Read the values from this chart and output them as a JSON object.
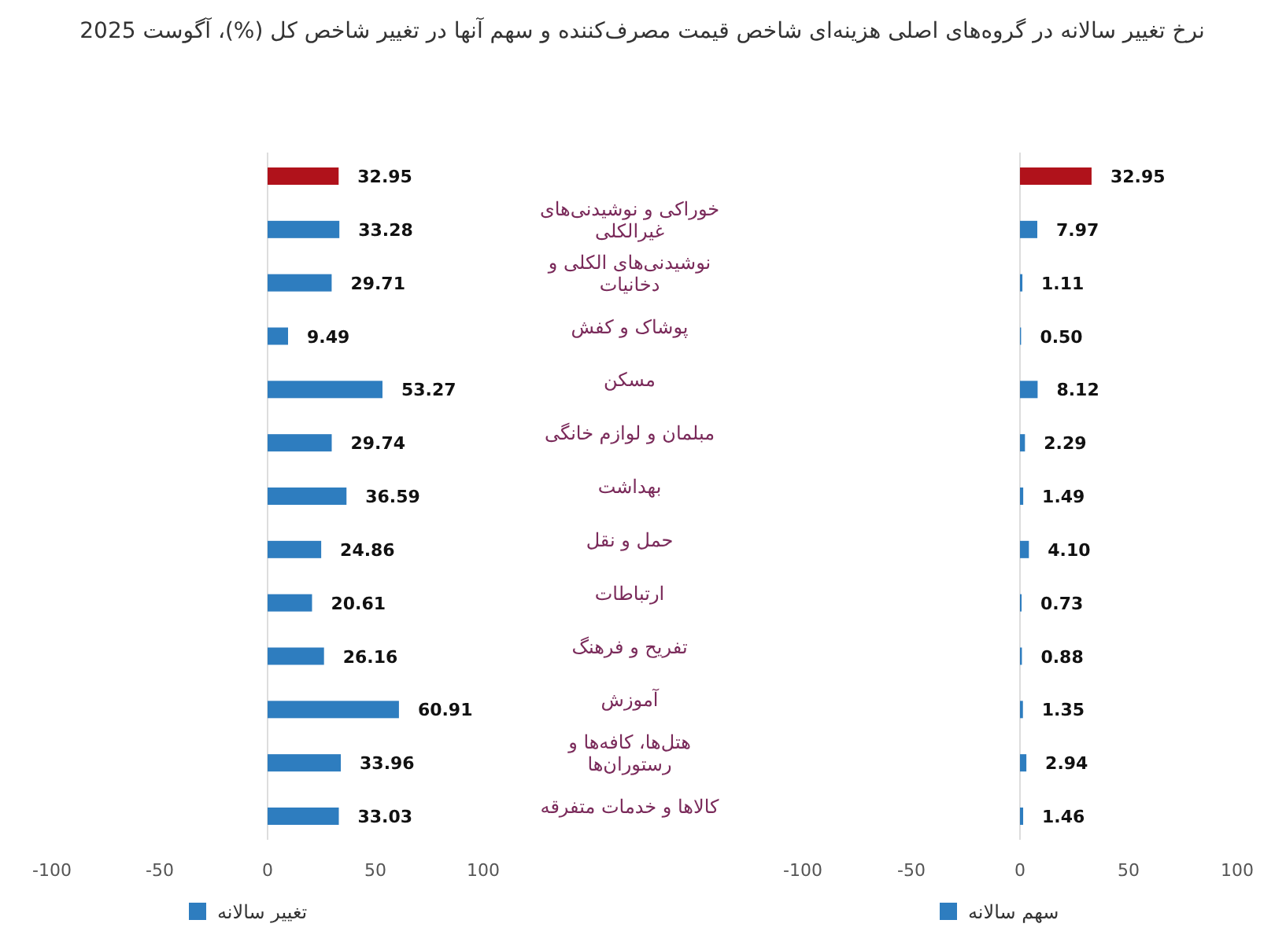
{
  "chart_data": [
    {
      "type": "bar",
      "orientation": "horizontal",
      "title": "نرخ تغییر سالانه در گروه‌های اصلی هزینه‌ای شاخص قیمت مصرف‌کننده و سهم آنها در تغییر شاخص کل (%)، آگوست 2025",
      "categories": [
        null,
        "خوراکی و نوشیدنی‌های غیرالکلی",
        "نوشیدنی‌های الکلی و دخانیات",
        "پوشاک و کفش",
        "مسکن",
        "مبلمان و لوازم خانگی",
        "بهداشت",
        "حمل و نقل",
        "ارتباطات",
        "تفریح و فرهنگ",
        "آموزش",
        "هتل‌ها، کافه‌ها و رستوران‌ها",
        "کالاها و خدمات متفرقه"
      ],
      "series": [
        {
          "name": "تغییر سالانه",
          "color": "#2e7dbf",
          "colors": [
            "#b0121b",
            "#2e7dbf",
            "#2e7dbf",
            "#2e7dbf",
            "#2e7dbf",
            "#2e7dbf",
            "#2e7dbf",
            "#2e7dbf",
            "#2e7dbf",
            "#2e7dbf",
            "#2e7dbf",
            "#2e7dbf",
            "#2e7dbf"
          ],
          "values": [
            32.95,
            33.28,
            29.71,
            9.49,
            53.27,
            29.74,
            36.59,
            24.86,
            20.61,
            26.16,
            60.91,
            33.96,
            33.03
          ],
          "value_labels": [
            "32.95",
            "33.28",
            "29.71",
            "9.49",
            "53.27",
            "29.74",
            "36.59",
            "24.86",
            "20.61",
            "26.16",
            "60.91",
            "33.96",
            "33.03"
          ]
        }
      ],
      "xlim": [
        -100,
        100
      ],
      "xticks": [
        -100,
        -50,
        0,
        50,
        100
      ],
      "legend": "bottom left"
    },
    {
      "type": "bar",
      "orientation": "horizontal",
      "categories": [
        null,
        null,
        null,
        null,
        null,
        null,
        null,
        null,
        null,
        null,
        null,
        null,
        null
      ],
      "series": [
        {
          "name": "سهم سالانه",
          "color": "#2e7dbf",
          "colors": [
            "#b0121b",
            "#2e7dbf",
            "#2e7dbf",
            "#2e7dbf",
            "#2e7dbf",
            "#2e7dbf",
            "#2e7dbf",
            "#2e7dbf",
            "#2e7dbf",
            "#2e7dbf",
            "#2e7dbf",
            "#2e7dbf",
            "#2e7dbf"
          ],
          "values": [
            32.95,
            7.97,
            1.11,
            0.5,
            8.12,
            2.29,
            1.49,
            4.1,
            0.73,
            0.88,
            1.35,
            2.94,
            1.46
          ],
          "value_labels": [
            "32.95",
            "7.97",
            "1.11",
            "0.50",
            "8.12",
            "2.29",
            "1.49",
            "4.10",
            "0.73",
            "0.88",
            "1.35",
            "2.94",
            "1.46"
          ]
        }
      ],
      "xlim": [
        -100,
        100
      ],
      "xticks": [
        -100,
        -50,
        0,
        50,
        100
      ],
      "tick_labels": "x",
      "legend": "bottom left"
    }
  ]
}
